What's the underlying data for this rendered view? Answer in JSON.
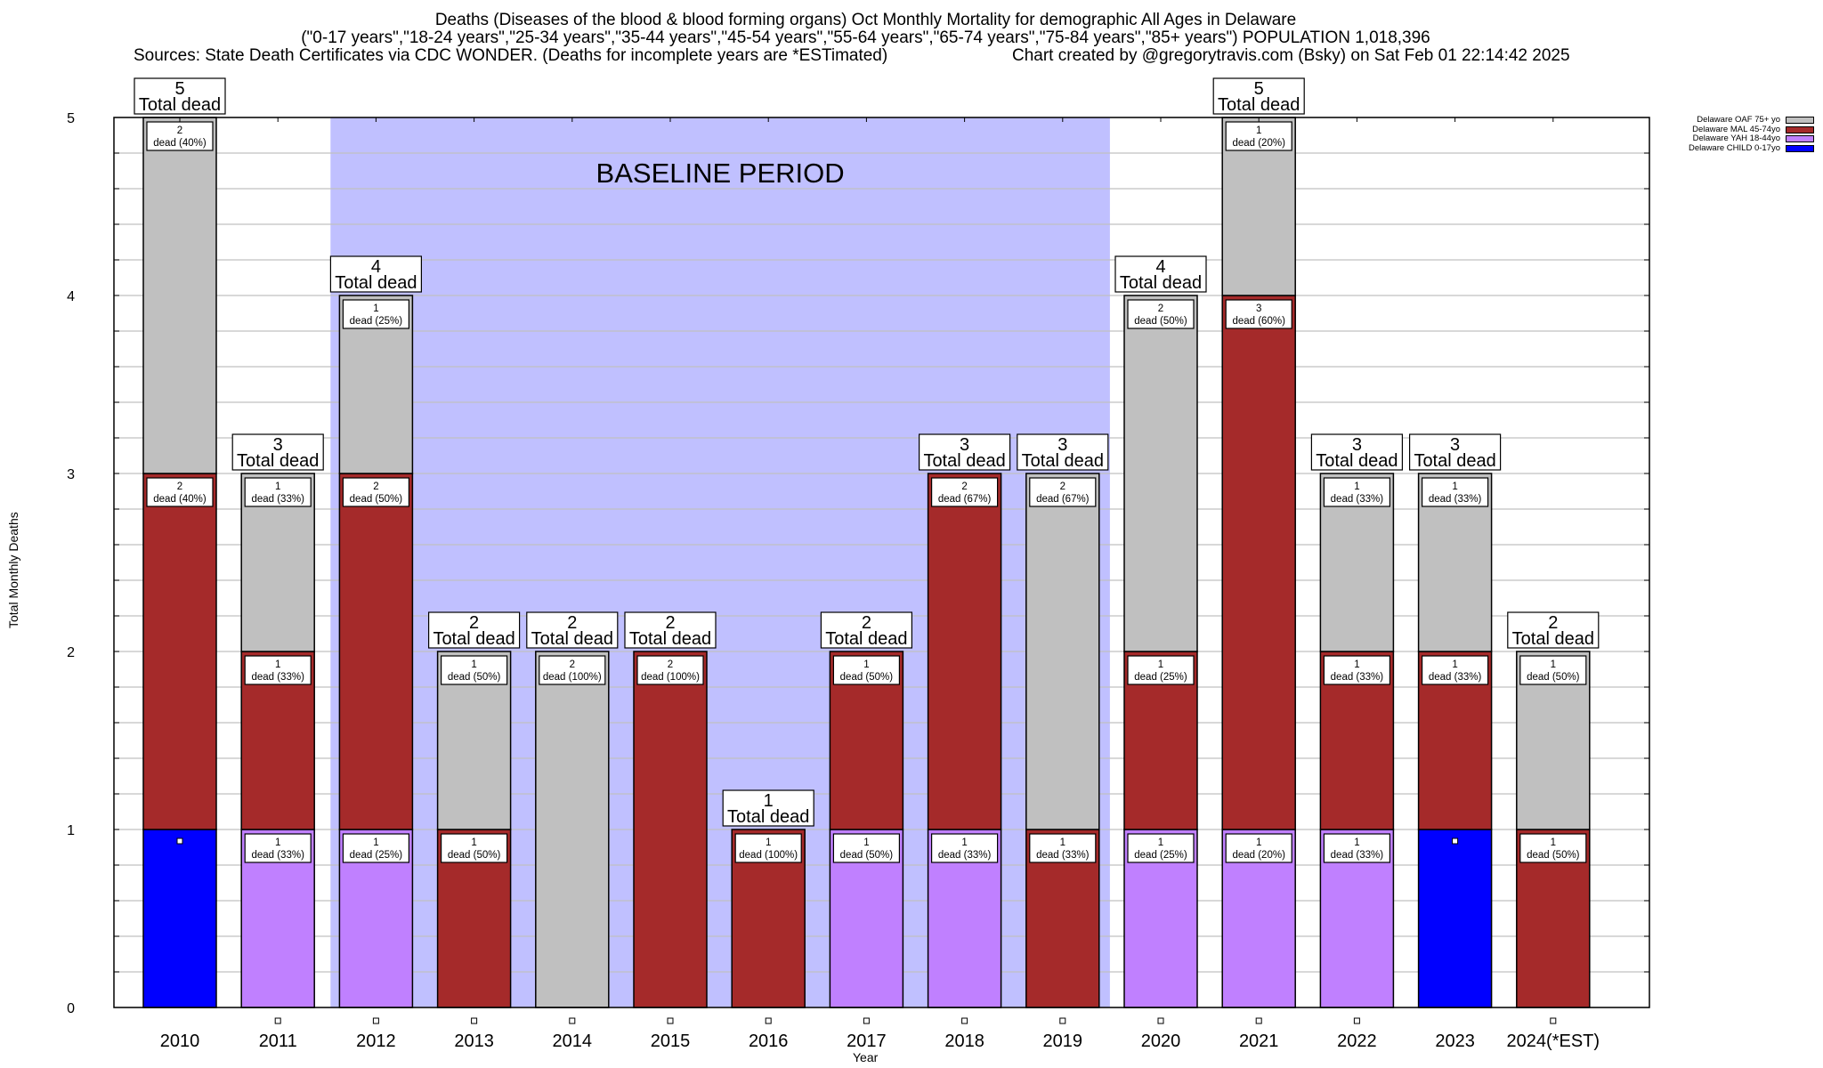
{
  "chart_data": {
    "type": "bar",
    "stacked": true,
    "title_lines": [
      "Deaths (Diseases of the blood & blood forming organs) Oct Monthly Mortality for demographic All Ages in Delaware",
      "(\"0-17 years\",\"18-24 years\",\"25-34 years\",\"35-44 years\",\"45-54 years\",\"55-64 years\",\"65-74 years\",\"75-84 years\",\"85+ years\") POPULATION 1,018,396",
      "Sources: State Death Certificates via CDC WONDER. (Deaths for incomplete years are *ESTimated)"
    ],
    "credit": "Chart created by @gregorytravis.com (Bsky) on Sat Feb 01 22:14:42 2025",
    "xlabel": "Year",
    "ylabel": "Total Monthly Deaths",
    "ylim": [
      0,
      5
    ],
    "yticks": [
      0,
      1,
      2,
      3,
      4,
      5
    ],
    "minor_grid_step": 0.2,
    "grid": true,
    "legend_position": "top-right",
    "categories": [
      "2010",
      "2011",
      "2012",
      "2013",
      "2014",
      "2015",
      "2016",
      "2017",
      "2018",
      "2019",
      "2020",
      "2021",
      "2022",
      "2023",
      "2024(*EST)"
    ],
    "series": [
      {
        "name": "Delaware CHILD 0-17yo",
        "color": "#0000ff",
        "values": [
          1,
          0,
          0,
          0,
          0,
          0,
          0,
          0,
          0,
          0,
          0,
          0,
          0,
          1,
          0
        ]
      },
      {
        "name": "Delaware YAH 18-44yo",
        "color": "#c080ff",
        "values": [
          0,
          1,
          1,
          0,
          0,
          0,
          0,
          1,
          1,
          0,
          1,
          1,
          1,
          0,
          0
        ]
      },
      {
        "name": "Delaware MAL 45-74yo",
        "color": "#a52a2a",
        "values": [
          2,
          1,
          2,
          1,
          0,
          2,
          1,
          1,
          2,
          1,
          1,
          3,
          1,
          1,
          1
        ]
      },
      {
        "name": "Delaware OAF 75+ yo",
        "color": "#c0c0c0",
        "values": [
          2,
          1,
          1,
          1,
          2,
          0,
          0,
          0,
          0,
          2,
          2,
          1,
          1,
          1,
          1
        ]
      }
    ],
    "totals": [
      5,
      3,
      4,
      2,
      2,
      2,
      1,
      2,
      3,
      3,
      4,
      5,
      3,
      3,
      2
    ],
    "total_label_suffix": "Total dead",
    "segment_label_suffix": "dead",
    "annotations": [
      {
        "text": "BASELINE PERIOD",
        "x_range": [
          "2012",
          "2019"
        ],
        "color": "#c0c0ff"
      }
    ],
    "legend_order": [
      "Delaware OAF 75+ yo",
      "Delaware MAL 45-74yo",
      "Delaware YAH 18-44yo",
      "Delaware CHILD 0-17yo"
    ]
  }
}
